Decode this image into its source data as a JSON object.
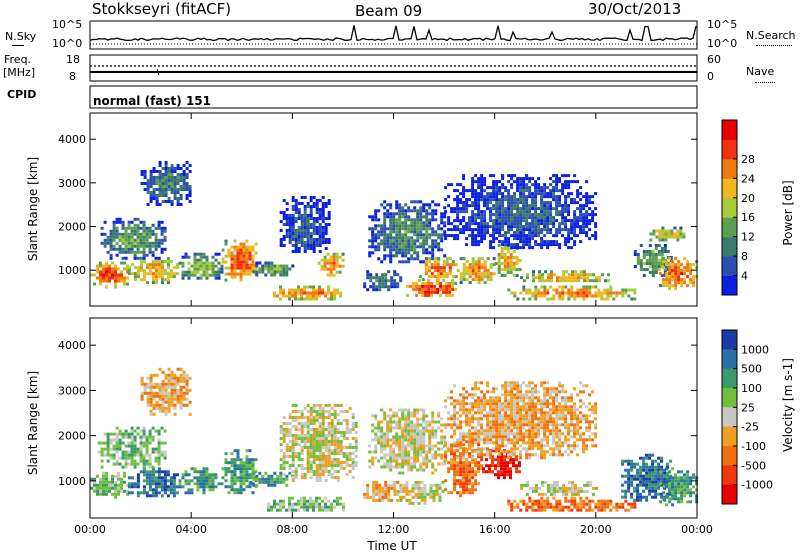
{
  "header": {
    "station": "Stokkseyri (fitACF)",
    "beam": "Beam 09",
    "date": "30/Oct/2013"
  },
  "strip_labels": {
    "nsky": "N.Sky",
    "nsky_hi": "10^5",
    "nsky_lo": "10^0",
    "nsearch": "N.Search",
    "nsearch_hi": "10^5",
    "nsearch_lo": "10^0",
    "freq_top": "Freq.",
    "freq_unit": "[MHz]",
    "freq_hi": "18",
    "freq_lo": "8",
    "nave": "Nave",
    "nave_hi": "60",
    "nave_lo": "0",
    "cpid": "CPID",
    "cpid_value": "normal (fast) 151"
  },
  "chart_data": [
    {
      "type": "heatmap",
      "panel": "power",
      "ylabel": "Slant Range [km]",
      "xlabel": "",
      "x_ticks": [
        "00:00",
        "04:00",
        "08:00",
        "12:00",
        "16:00",
        "20:00",
        "00:00"
      ],
      "xlim_hours": [
        0,
        24
      ],
      "y_ticks": [
        1000,
        2000,
        3000,
        4000
      ],
      "ylim": [
        180,
        4600
      ],
      "colorbar": {
        "label": "Power [dB]",
        "ticks": [
          4,
          8,
          12,
          16,
          20,
          24,
          28
        ],
        "range": [
          0,
          32
        ],
        "colors": [
          "#0a1fe0",
          "#2a4fb0",
          "#3a7a6a",
          "#5aa050",
          "#a6cc3a",
          "#f0b820",
          "#f07a10",
          "#f03010",
          "#e80000"
        ]
      },
      "regions": [
        {
          "t": [
            0.0,
            1.5
          ],
          "r": [
            650,
            1200
          ],
          "v": 27
        },
        {
          "t": [
            1.5,
            3.5
          ],
          "r": [
            750,
            1300
          ],
          "v": 22
        },
        {
          "t": [
            3.5,
            5.2
          ],
          "r": [
            800,
            1400
          ],
          "v": 16
        },
        {
          "t": [
            5.2,
            6.6
          ],
          "r": [
            750,
            1700
          ],
          "v": 27
        },
        {
          "t": [
            0.3,
            3.0
          ],
          "r": [
            1300,
            2200
          ],
          "v": 12
        },
        {
          "t": [
            2.0,
            4.0
          ],
          "r": [
            2500,
            3500
          ],
          "v": 9
        },
        {
          "t": [
            6.3,
            8.0
          ],
          "r": [
            900,
            1200
          ],
          "v": 14
        },
        {
          "t": [
            7.0,
            10.0
          ],
          "r": [
            350,
            650
          ],
          "v": 24
        },
        {
          "t": [
            9.0,
            10.0
          ],
          "r": [
            900,
            1400
          ],
          "v": 24
        },
        {
          "t": [
            7.5,
            9.5
          ],
          "r": [
            1400,
            2700
          ],
          "v": 6
        },
        {
          "t": [
            10.8,
            12.3
          ],
          "r": [
            550,
            1000
          ],
          "v": 10
        },
        {
          "t": [
            11.0,
            14.0
          ],
          "r": [
            1200,
            2600
          ],
          "v": 10
        },
        {
          "t": [
            12.5,
            14.5
          ],
          "r": [
            400,
            800
          ],
          "v": 29
        },
        {
          "t": [
            13.0,
            14.5
          ],
          "r": [
            800,
            1300
          ],
          "v": 26
        },
        {
          "t": [
            14.5,
            16.0
          ],
          "r": [
            750,
            1300
          ],
          "v": 24
        },
        {
          "t": [
            16.0,
            17.0
          ],
          "r": [
            900,
            1600
          ],
          "v": 22
        },
        {
          "t": [
            16.5,
            21.5
          ],
          "r": [
            350,
            650
          ],
          "v": 24
        },
        {
          "t": [
            17.0,
            20.5
          ],
          "r": [
            750,
            1000
          ],
          "v": 22
        },
        {
          "t": [
            14.0,
            20.0
          ],
          "r": [
            1500,
            3200
          ],
          "v": 6
        },
        {
          "t": [
            21.5,
            23.0
          ],
          "r": [
            900,
            1600
          ],
          "v": 14
        },
        {
          "t": [
            22.5,
            24.0
          ],
          "r": [
            600,
            1300
          ],
          "v": 27
        },
        {
          "t": [
            22.0,
            23.5
          ],
          "r": [
            1700,
            2000
          ],
          "v": 20
        }
      ]
    },
    {
      "type": "heatmap",
      "panel": "velocity",
      "ylabel": "Slant Range [km]",
      "xlabel": "Time UT",
      "x_ticks": [
        "00:00",
        "04:00",
        "08:00",
        "12:00",
        "16:00",
        "20:00",
        "00:00"
      ],
      "xlim_hours": [
        0,
        24
      ],
      "y_ticks": [
        1000,
        2000,
        3000,
        4000
      ],
      "ylim": [
        180,
        4600
      ],
      "colorbar": {
        "label": "Velocity [m s-1]",
        "ticks": [
          "1000",
          "500",
          "100",
          "25",
          "-25",
          "-100",
          "-500",
          "-1000"
        ],
        "colors": [
          "#1a3aa8",
          "#2a70a8",
          "#3a9a6a",
          "#70c040",
          "#c8c8c0",
          "#f0a020",
          "#f07010",
          "#f03808",
          "#e80000"
        ]
      },
      "regions": [
        {
          "t": [
            0.0,
            1.5
          ],
          "r": [
            650,
            1200
          ],
          "v": 3
        },
        {
          "t": [
            1.5,
            3.5
          ],
          "r": [
            700,
            1300
          ],
          "v": 1
        },
        {
          "t": [
            3.5,
            5.2
          ],
          "r": [
            750,
            1300
          ],
          "v": 2
        },
        {
          "t": [
            5.2,
            6.6
          ],
          "r": [
            750,
            1700
          ],
          "v": 2
        },
        {
          "t": [
            0.3,
            3.0
          ],
          "r": [
            1300,
            2200
          ],
          "v": 3
        },
        {
          "t": [
            2.0,
            4.0
          ],
          "r": [
            2500,
            3500
          ],
          "v": 5
        },
        {
          "t": [
            6.3,
            8.0
          ],
          "r": [
            900,
            1200
          ],
          "v": 2
        },
        {
          "t": [
            7.0,
            10.0
          ],
          "r": [
            350,
            650
          ],
          "v": 3
        },
        {
          "t": [
            7.5,
            10.5
          ],
          "r": [
            1000,
            2700
          ],
          "v": 4
        },
        {
          "t": [
            10.8,
            12.3
          ],
          "r": [
            550,
            1000
          ],
          "v": 5
        },
        {
          "t": [
            11.0,
            14.0
          ],
          "r": [
            1200,
            2600
          ],
          "v": 4
        },
        {
          "t": [
            12.0,
            14.0
          ],
          "r": [
            500,
            1000
          ],
          "v": 4
        },
        {
          "t": [
            14.0,
            15.5
          ],
          "r": [
            700,
            1900
          ],
          "v": 6
        },
        {
          "t": [
            15.5,
            17.0
          ],
          "r": [
            1100,
            1700
          ],
          "v": 8
        },
        {
          "t": [
            16.5,
            21.5
          ],
          "r": [
            350,
            650
          ],
          "v": 6
        },
        {
          "t": [
            17.0,
            20.0
          ],
          "r": [
            700,
            1000
          ],
          "v": 4
        },
        {
          "t": [
            14.0,
            20.0
          ],
          "r": [
            1500,
            3200
          ],
          "v": 5
        },
        {
          "t": [
            21.0,
            23.0
          ],
          "r": [
            600,
            1600
          ],
          "v": 1
        },
        {
          "t": [
            22.5,
            24.0
          ],
          "r": [
            500,
            1300
          ],
          "v": 2
        }
      ]
    }
  ]
}
